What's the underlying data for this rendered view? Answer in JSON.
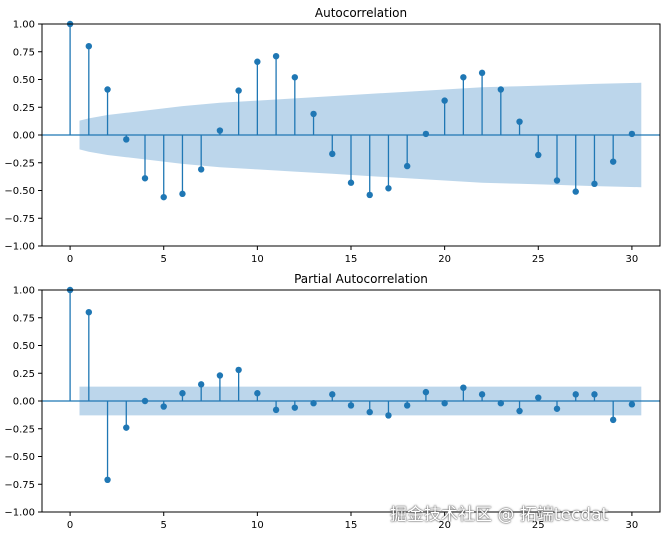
{
  "chart_data": [
    {
      "type": "stem",
      "title": "Autocorrelation",
      "xlabel": "",
      "ylabel": "",
      "xlim": [
        -1.5,
        31.5
      ],
      "ylim": [
        -1.0,
        1.0
      ],
      "x_ticks": [
        0,
        5,
        10,
        15,
        20,
        25,
        30
      ],
      "y_ticks": [
        -1.0,
        -0.75,
        -0.5,
        -0.25,
        0.0,
        0.25,
        0.5,
        0.75,
        1.0
      ],
      "x_tick_labels": [
        "0",
        "5",
        "10",
        "15",
        "20",
        "25",
        "30"
      ],
      "y_tick_labels": [
        "−1.00",
        "−0.75",
        "−0.50",
        "−0.25",
        "0.00",
        "0.25",
        "0.50",
        "0.75",
        "1.00"
      ],
      "lags": [
        0,
        1,
        2,
        3,
        4,
        5,
        6,
        7,
        8,
        9,
        10,
        11,
        12,
        13,
        14,
        15,
        16,
        17,
        18,
        19,
        20,
        21,
        22,
        23,
        24,
        25,
        26,
        27,
        28,
        29,
        30
      ],
      "values": [
        1.0,
        0.8,
        0.41,
        -0.04,
        -0.39,
        -0.56,
        -0.53,
        -0.31,
        0.04,
        0.4,
        0.66,
        0.71,
        0.52,
        0.19,
        -0.17,
        -0.43,
        -0.54,
        -0.48,
        -0.28,
        0.01,
        0.31,
        0.52,
        0.56,
        0.41,
        0.12,
        -0.18,
        -0.41,
        -0.51,
        -0.44,
        -0.24,
        0.01
      ],
      "confidence_band": {
        "lags": [
          0.5,
          1,
          2,
          3,
          4,
          5,
          6,
          8,
          10,
          12,
          14,
          16,
          18,
          20,
          22,
          24,
          26,
          28,
          30.5
        ],
        "upper": [
          0.13,
          0.15,
          0.18,
          0.2,
          0.22,
          0.24,
          0.26,
          0.29,
          0.31,
          0.33,
          0.35,
          0.37,
          0.39,
          0.41,
          0.43,
          0.44,
          0.45,
          0.46,
          0.47
        ]
      },
      "grid": false
    },
    {
      "type": "stem",
      "title": "Partial Autocorrelation",
      "xlabel": "",
      "ylabel": "",
      "xlim": [
        -1.5,
        31.5
      ],
      "ylim": [
        -1.0,
        1.0
      ],
      "x_ticks": [
        0,
        5,
        10,
        15,
        20,
        25,
        30
      ],
      "y_ticks": [
        -1.0,
        -0.75,
        -0.5,
        -0.25,
        0.0,
        0.25,
        0.5,
        0.75,
        1.0
      ],
      "x_tick_labels": [
        "0",
        "5",
        "10",
        "15",
        "20",
        "25",
        "30"
      ],
      "y_tick_labels": [
        "−1.00",
        "−0.75",
        "−0.50",
        "−0.25",
        "0.00",
        "0.25",
        "0.50",
        "0.75",
        "1.00"
      ],
      "lags": [
        0,
        1,
        2,
        3,
        4,
        5,
        6,
        7,
        8,
        9,
        10,
        11,
        12,
        13,
        14,
        15,
        16,
        17,
        18,
        19,
        20,
        21,
        22,
        23,
        24,
        25,
        26,
        27,
        28,
        29,
        30
      ],
      "values": [
        1.0,
        0.8,
        -0.71,
        -0.24,
        0.0,
        -0.05,
        0.07,
        0.15,
        0.23,
        0.28,
        0.07,
        -0.08,
        -0.06,
        -0.02,
        0.06,
        -0.04,
        -0.1,
        -0.13,
        -0.04,
        0.08,
        -0.02,
        0.12,
        0.06,
        -0.02,
        -0.09,
        0.03,
        -0.07,
        0.06,
        0.06,
        -0.17,
        -0.03
      ],
      "confidence_band": {
        "lags": [
          0.5,
          30.5
        ],
        "upper": [
          0.13,
          0.13
        ]
      },
      "grid": false
    }
  ],
  "watermark": "掘金技术社区 @ 拓端tecdat",
  "colors": {
    "stem": "#1f77b4",
    "band": "#a6c8e4",
    "zero_line": "#1f77b4",
    "axis": "#000000"
  }
}
